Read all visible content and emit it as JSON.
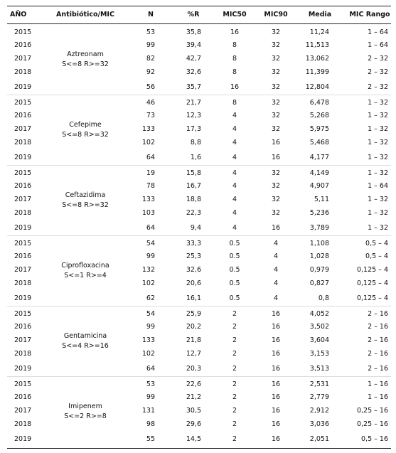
{
  "table": {
    "header": [
      "AÑO",
      "Antibiótico/MIC",
      "N",
      "%R",
      "MIC50",
      "MIC90",
      "Media",
      "MIC Rango"
    ],
    "groups": [
      {
        "name": "Aztreonam",
        "criteria": "S<=8 R>=32",
        "rows": [
          [
            "2015",
            "53",
            "35,8",
            "16",
            "32",
            "11,24",
            "1 – 64"
          ],
          [
            "2016",
            "99",
            "39,4",
            "8",
            "32",
            "11,513",
            "1 – 64"
          ],
          [
            "2017",
            "82",
            "42,7",
            "8",
            "32",
            "13,062",
            "2 – 32"
          ],
          [
            "2018",
            "92",
            "32,6",
            "8",
            "32",
            "11,399",
            "2 – 32"
          ],
          [
            "2019",
            "56",
            "35,7",
            "16",
            "32",
            "12,804",
            "2 – 32"
          ]
        ]
      },
      {
        "name": "Cefepime",
        "criteria": "S<=8 R>=32",
        "rows": [
          [
            "2015",
            "46",
            "21,7",
            "8",
            "32",
            "6,478",
            "1 – 32"
          ],
          [
            "2016",
            "73",
            "12,3",
            "4",
            "32",
            "5,268",
            "1 – 32"
          ],
          [
            "2017",
            "133",
            "17,3",
            "4",
            "32",
            "5,975",
            "1 – 32"
          ],
          [
            "2018",
            "102",
            "8,8",
            "4",
            "16",
            "5,468",
            "1 – 32"
          ],
          [
            "2019",
            "64",
            "1,6",
            "4",
            "16",
            "4,177",
            "1 – 32"
          ]
        ]
      },
      {
        "name": "Ceftazidima",
        "criteria": "S<=8 R>=32",
        "rows": [
          [
            "2015",
            "19",
            "15,8",
            "4",
            "32",
            "4,149",
            "1 – 32"
          ],
          [
            "2016",
            "78",
            "16,7",
            "4",
            "32",
            "4,907",
            "1 – 64"
          ],
          [
            "2017",
            "133",
            "18,8",
            "4",
            "32",
            "5,11",
            "1 – 32"
          ],
          [
            "2018",
            "103",
            "22,3",
            "4",
            "32",
            "5,236",
            "1 – 32"
          ],
          [
            "2019",
            "64",
            "9,4",
            "4",
            "16",
            "3,789",
            "1 – 32"
          ]
        ]
      },
      {
        "name": "Ciprofloxacina",
        "criteria": "S<=1 R>=4",
        "rows": [
          [
            "2015",
            "54",
            "33,3",
            "0.5",
            "4",
            "1,108",
            "0,5 – 4"
          ],
          [
            "2016",
            "99",
            "25,3",
            "0.5",
            "4",
            "1,028",
            "0,5 – 4"
          ],
          [
            "2017",
            "132",
            "32,6",
            "0.5",
            "4",
            "0,979",
            "0,125 – 4"
          ],
          [
            "2018",
            "102",
            "20,6",
            "0.5",
            "4",
            "0,827",
            "0,125 – 4"
          ],
          [
            "2019",
            "62",
            "16,1",
            "0.5",
            "4",
            "0,8",
            "0,125 – 4"
          ]
        ]
      },
      {
        "name": "Gentamicina",
        "criteria": "S<=4 R>=16",
        "rows": [
          [
            "2015",
            "54",
            "25,9",
            "2",
            "16",
            "4,052",
            "2 – 16"
          ],
          [
            "2016",
            "99",
            "20,2",
            "2",
            "16",
            "3,502",
            "2 – 16"
          ],
          [
            "2017",
            "133",
            "21,8",
            "2",
            "16",
            "3,604",
            "2 – 16"
          ],
          [
            "2018",
            "102",
            "12,7",
            "2",
            "16",
            "3,153",
            "2 – 16"
          ],
          [
            "2019",
            "64",
            "20,3",
            "2",
            "16",
            "3,513",
            "2 – 16"
          ]
        ]
      },
      {
        "name": "Imipenem",
        "criteria": "S<=2 R>=8",
        "rows": [
          [
            "2015",
            "53",
            "22,6",
            "2",
            "16",
            "2,531",
            "1 – 16"
          ],
          [
            "2016",
            "99",
            "21,2",
            "2",
            "16",
            "2,779",
            "1 – 16"
          ],
          [
            "2017",
            "131",
            "30,5",
            "2",
            "16",
            "2,912",
            "0,25 – 16"
          ],
          [
            "2018",
            "98",
            "29,6",
            "2",
            "16",
            "3,036",
            "0,25 – 16"
          ],
          [
            "2019",
            "55",
            "14,5",
            "2",
            "16",
            "2,051",
            "0,5 – 16"
          ]
        ]
      }
    ]
  }
}
